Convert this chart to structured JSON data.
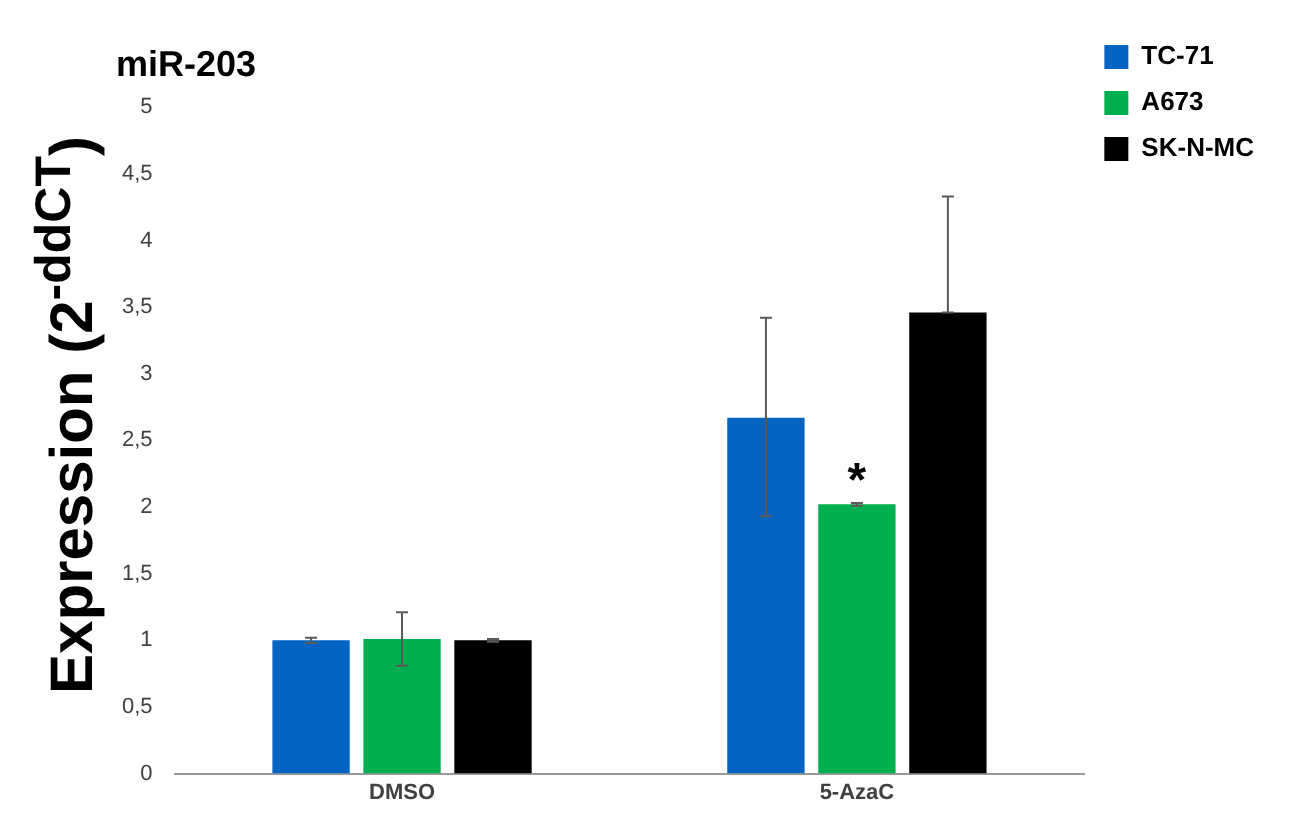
{
  "chart_data": {
    "type": "bar",
    "title": "miR-203",
    "ylabel": "Expression (2$^{-ddCT}$)",
    "categories": [
      "DMSO",
      "5-AzaC"
    ],
    "series": [
      {
        "name": "TC-71",
        "color": "#0563c1",
        "values": [
          1.0,
          2.67
        ],
        "errors": [
          0.02,
          [
            1.93,
            3.42
          ]
        ]
      },
      {
        "name": "A673",
        "color": "#00b050",
        "values": [
          1.01,
          2.02
        ],
        "errors": [
          0.2,
          0.01
        ]
      },
      {
        "name": "SK-N-MC",
        "color": "#000000",
        "values": [
          1.0,
          3.46
        ],
        "errors": [
          0.01,
          [
            3.46,
            4.33
          ]
        ]
      }
    ],
    "ylim": [
      0,
      5
    ],
    "yticks": [
      0,
      {
        "value": 0.5,
        "label": "0,5"
      },
      1,
      {
        "value": 1.5,
        "label": "1,5"
      },
      2,
      {
        "value": 2.5,
        "label": "2,5"
      },
      3,
      {
        "value": 3.5,
        "label": "3,5"
      },
      4,
      {
        "value": 4.5,
        "label": "4,5"
      },
      5
    ],
    "annotations": [
      "*"
    ],
    "grid": false,
    "legend": "top right"
  }
}
